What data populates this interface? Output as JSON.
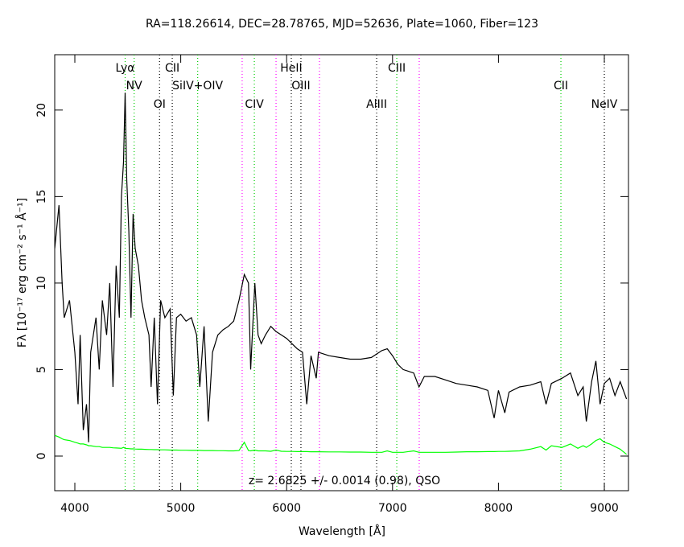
{
  "chart_data": {
    "type": "line",
    "title": "RA=118.26614, DEC=28.78765, MJD=52636, Plate=1060, Fiber=123",
    "xlabel": "Wavelength [Å]",
    "ylabel": "Fλ [10⁻¹⁷ erg cm⁻² s⁻¹ Å⁻¹]",
    "annotation": "z= 2.6825 +/- 0.0014 (0.98), QSO",
    "xlim": [
      3810,
      9228
    ],
    "ylim": [
      -2,
      23.2
    ],
    "xticks": [
      4000,
      5000,
      6000,
      7000,
      8000,
      9000
    ],
    "yticks": [
      0,
      5,
      10,
      15,
      20
    ],
    "x": [
      3810,
      3850,
      3880,
      3900,
      3950,
      4000,
      4030,
      4050,
      4080,
      4110,
      4130,
      4150,
      4200,
      4230,
      4260,
      4300,
      4330,
      4360,
      4390,
      4420,
      4440,
      4460,
      4475,
      4490,
      4510,
      4530,
      4550,
      4570,
      4600,
      4630,
      4660,
      4700,
      4720,
      4750,
      4780,
      4810,
      4850,
      4900,
      4930,
      4960,
      5000,
      5050,
      5100,
      5150,
      5180,
      5220,
      5260,
      5300,
      5350,
      5400,
      5450,
      5500,
      5550,
      5600,
      5640,
      5660,
      5700,
      5730,
      5760,
      5800,
      5850,
      5900,
      5950,
      6000,
      6050,
      6100,
      6150,
      6190,
      6230,
      6280,
      6300,
      6400,
      6500,
      6600,
      6700,
      6800,
      6900,
      6950,
      7000,
      7050,
      7100,
      7200,
      7250,
      7300,
      7400,
      7500,
      7600,
      7700,
      7800,
      7900,
      7960,
      8000,
      8060,
      8100,
      8200,
      8300,
      8400,
      8450,
      8500,
      8600,
      8680,
      8750,
      8800,
      8830,
      8880,
      8920,
      8960,
      9000,
      9050,
      9100,
      9150,
      9210
    ],
    "series": [
      {
        "color": "#000000",
        "values": [
          12,
          14.5,
          10,
          8,
          9,
          6,
          3,
          7,
          1.5,
          3,
          0.8,
          6,
          8,
          5,
          9,
          7,
          10,
          4,
          11,
          8,
          15,
          17,
          21,
          16,
          13,
          8,
          14,
          12,
          11,
          9,
          8,
          7,
          4,
          8,
          3,
          9,
          8,
          8.5,
          3.5,
          8,
          8.2,
          7.8,
          8,
          7,
          4,
          7.5,
          2,
          6,
          7,
          7.3,
          7.5,
          7.8,
          9,
          10.5,
          10,
          5,
          10,
          7,
          6.5,
          7,
          7.5,
          7.2,
          7,
          6.8,
          6.5,
          6.2,
          6,
          3,
          5.8,
          4.5,
          6,
          5.8,
          5.7,
          5.6,
          5.6,
          5.7,
          6.1,
          6.2,
          5.8,
          5.3,
          5,
          4.8,
          4,
          4.6,
          4.6,
          4.4,
          4.2,
          4.1,
          4,
          3.8,
          2.2,
          3.8,
          2.5,
          3.7,
          4,
          4.1,
          4.3,
          3,
          4.2,
          4.5,
          4.8,
          3.5,
          4,
          2,
          4.3,
          5.5,
          3,
          4.2,
          4.5,
          3.5,
          4.3,
          3.3
        ]
      },
      {
        "color": "#00ff00",
        "values": [
          1.2,
          1.1,
          1.0,
          0.95,
          0.9,
          0.8,
          0.75,
          0.7,
          0.7,
          0.65,
          0.6,
          0.6,
          0.55,
          0.55,
          0.5,
          0.5,
          0.5,
          0.48,
          0.47,
          0.46,
          0.45,
          0.5,
          0.45,
          0.44,
          0.43,
          0.42,
          0.42,
          0.41,
          0.4,
          0.4,
          0.39,
          0.38,
          0.38,
          0.37,
          0.37,
          0.36,
          0.36,
          0.35,
          0.35,
          0.35,
          0.34,
          0.34,
          0.33,
          0.33,
          0.33,
          0.32,
          0.32,
          0.32,
          0.31,
          0.31,
          0.3,
          0.3,
          0.32,
          0.8,
          0.32,
          0.3,
          0.35,
          0.3,
          0.3,
          0.3,
          0.28,
          0.35,
          0.28,
          0.27,
          0.27,
          0.26,
          0.26,
          0.26,
          0.25,
          0.25,
          0.25,
          0.24,
          0.24,
          0.23,
          0.23,
          0.22,
          0.22,
          0.3,
          0.22,
          0.22,
          0.22,
          0.3,
          0.22,
          0.22,
          0.22,
          0.22,
          0.23,
          0.25,
          0.25,
          0.26,
          0.26,
          0.27,
          0.27,
          0.28,
          0.3,
          0.4,
          0.55,
          0.35,
          0.6,
          0.5,
          0.7,
          0.45,
          0.6,
          0.5,
          0.7,
          0.9,
          1.0,
          0.8,
          0.7,
          0.55,
          0.4,
          0.1
        ]
      }
    ],
    "lines": [
      {
        "label": "Lyα",
        "x": 4475,
        "color": "#00cc00"
      },
      {
        "label": "NV",
        "x": 4560,
        "color": "#00cc00"
      },
      {
        "label": "OI",
        "x": 4800,
        "color": "#000000"
      },
      {
        "label": "CII",
        "x": 4920,
        "color": "#000000"
      },
      {
        "label": "SiIV+OIV",
        "x": 5160,
        "color": "#00cc00"
      },
      {
        "x": 5580,
        "color": "#ff00ff"
      },
      {
        "label": "CIV",
        "x": 5695,
        "color": "#00cc00"
      },
      {
        "x": 5900,
        "color": "#ff00ff"
      },
      {
        "label": "HeII",
        "x": 6044,
        "color": "#000000"
      },
      {
        "label": "OIII",
        "x": 6135,
        "color": "#000000"
      },
      {
        "x": 6310,
        "color": "#ff00ff"
      },
      {
        "label": "AlIII",
        "x": 6850,
        "color": "#000000"
      },
      {
        "label": "CIII",
        "x": 7040,
        "color": "#00cc00"
      },
      {
        "x": 7252,
        "color": "#ff00ff"
      },
      {
        "label": "CII",
        "x": 8590,
        "color": "#00cc00"
      },
      {
        "label": "NeIV",
        "x": 9000,
        "color": "#000000"
      }
    ]
  }
}
